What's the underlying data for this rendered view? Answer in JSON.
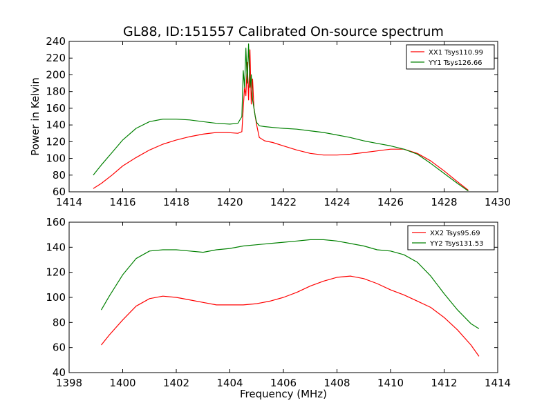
{
  "chart_data": [
    {
      "type": "line",
      "title": "GL88, ID:151557 Calibrated On-source spectrum",
      "xlabel": "",
      "ylabel": "Power in Kelvin",
      "xlim": [
        1414,
        1430
      ],
      "ylim": [
        60,
        240
      ],
      "xticks": [
        1414,
        1416,
        1418,
        1420,
        1422,
        1424,
        1426,
        1428,
        1430
      ],
      "yticks": [
        60,
        80,
        100,
        120,
        140,
        160,
        180,
        200,
        220,
        240
      ],
      "legend_position": "top-right",
      "series": [
        {
          "name": "XX1 Tsys110.99",
          "color": "#ff0000",
          "x": [
            1414.9,
            1415.2,
            1415.6,
            1416.0,
            1416.5,
            1417.0,
            1417.5,
            1418.0,
            1418.5,
            1419.0,
            1419.5,
            1419.9,
            1420.3,
            1420.45,
            1420.5,
            1420.55,
            1420.6,
            1420.65,
            1420.7,
            1420.75,
            1420.8,
            1420.85,
            1420.9,
            1420.95,
            1421.0,
            1421.1,
            1421.3,
            1421.6,
            1422.0,
            1422.5,
            1423.0,
            1423.5,
            1424.0,
            1424.5,
            1425.0,
            1425.5,
            1426.0,
            1426.5,
            1427.0,
            1427.5,
            1428.0,
            1428.5,
            1428.9
          ],
          "y": [
            64,
            70,
            80,
            91,
            101,
            110,
            117,
            122,
            126,
            129,
            131,
            131,
            130,
            132,
            160,
            185,
            175,
            215,
            170,
            230,
            165,
            195,
            160,
            150,
            140,
            125,
            121,
            119,
            115,
            110,
            106,
            104,
            104,
            105,
            107,
            109,
            111,
            111,
            106,
            97,
            85,
            72,
            62
          ]
        },
        {
          "name": "YY1 Tsys126.66",
          "color": "#008000",
          "x": [
            1414.9,
            1415.2,
            1415.6,
            1416.0,
            1416.5,
            1417.0,
            1417.5,
            1418.0,
            1418.5,
            1419.0,
            1419.5,
            1420.0,
            1420.3,
            1420.45,
            1420.5,
            1420.55,
            1420.6,
            1420.65,
            1420.7,
            1420.75,
            1420.8,
            1420.85,
            1420.9,
            1420.95,
            1421.0,
            1421.1,
            1421.3,
            1421.6,
            1422.0,
            1422.5,
            1423.0,
            1423.5,
            1424.0,
            1424.5,
            1425.0,
            1425.5,
            1426.0,
            1426.5,
            1427.0,
            1427.5,
            1428.0,
            1428.5,
            1428.9
          ],
          "y": [
            80,
            92,
            107,
            122,
            136,
            144,
            147,
            147,
            146,
            144,
            142,
            141,
            142,
            150,
            205,
            185,
            232,
            190,
            237,
            185,
            200,
            170,
            160,
            150,
            143,
            139,
            138,
            137,
            136,
            135,
            133,
            131,
            128,
            125,
            121,
            118,
            115,
            111,
            105,
            94,
            82,
            70,
            61
          ]
        }
      ]
    },
    {
      "type": "line",
      "title": "",
      "xlabel": "Frequency (MHz)",
      "ylabel": "",
      "xlim": [
        1398,
        1414
      ],
      "ylim": [
        40,
        160
      ],
      "xticks": [
        1398,
        1400,
        1402,
        1404,
        1406,
        1408,
        1410,
        1412,
        1414
      ],
      "yticks": [
        40,
        60,
        80,
        100,
        120,
        140,
        160
      ],
      "legend_position": "top-right",
      "series": [
        {
          "name": "XX2 Tsys95.69",
          "color": "#ff0000",
          "x": [
            1399.2,
            1399.5,
            1400.0,
            1400.5,
            1401.0,
            1401.5,
            1402.0,
            1402.5,
            1403.0,
            1403.5,
            1404.0,
            1404.5,
            1405.0,
            1405.5,
            1406.0,
            1406.5,
            1407.0,
            1407.5,
            1408.0,
            1408.5,
            1409.0,
            1409.5,
            1410.0,
            1410.5,
            1411.0,
            1411.5,
            1412.0,
            1412.5,
            1413.0,
            1413.3
          ],
          "y": [
            62,
            70,
            82,
            93,
            99,
            101,
            100,
            98,
            96,
            94,
            94,
            94,
            95,
            97,
            100,
            104,
            109,
            113,
            116,
            117,
            115,
            111,
            106,
            102,
            97,
            92,
            84,
            74,
            62,
            53
          ]
        },
        {
          "name": "YY2 Tsys131.53",
          "color": "#008000",
          "x": [
            1399.2,
            1399.5,
            1400.0,
            1400.5,
            1401.0,
            1401.5,
            1402.0,
            1402.5,
            1403.0,
            1403.5,
            1404.0,
            1404.5,
            1405.0,
            1405.5,
            1406.0,
            1406.5,
            1407.0,
            1407.5,
            1408.0,
            1408.5,
            1409.0,
            1409.5,
            1410.0,
            1410.5,
            1411.0,
            1411.5,
            1412.0,
            1412.5,
            1413.0,
            1413.3
          ],
          "y": [
            90,
            101,
            118,
            131,
            137,
            138,
            138,
            137,
            136,
            138,
            139,
            141,
            142,
            143,
            144,
            145,
            146,
            146,
            145,
            143,
            141,
            138,
            137,
            134,
            128,
            117,
            103,
            90,
            79,
            75
          ]
        }
      ]
    }
  ]
}
